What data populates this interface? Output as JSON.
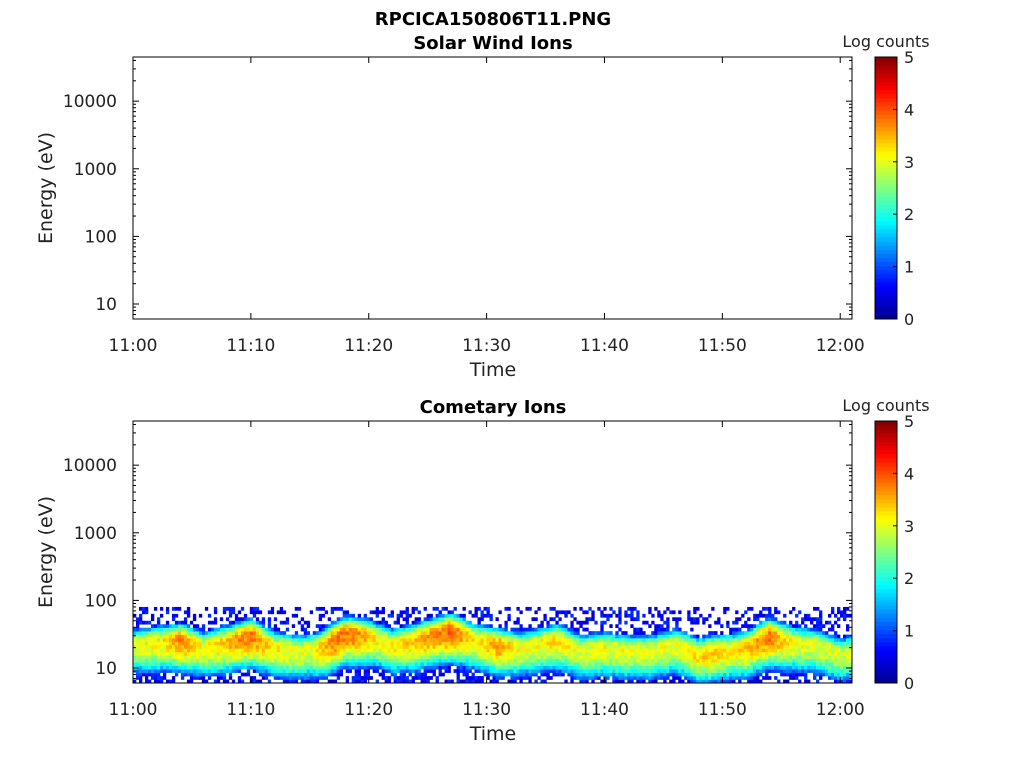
{
  "figure": {
    "title": "RPCICA150806T11.PNG"
  },
  "colorbar": {
    "label": "Log counts",
    "ticks": [
      "0",
      "1",
      "2",
      "3",
      "4",
      "5"
    ]
  },
  "colormap": [
    "#00008f",
    "#0000ff",
    "#0080ff",
    "#00ffff",
    "#80ff80",
    "#ffff00",
    "#ff8000",
    "#ff0000",
    "#800000"
  ],
  "chart_data": [
    {
      "type": "heatmap",
      "title": "Solar Wind Ions",
      "xlabel": "Time",
      "ylabel": "Energy (eV)",
      "x_ticks": [
        "11:00",
        "11:10",
        "11:20",
        "11:30",
        "11:40",
        "11:50",
        "12:00"
      ],
      "xlim_minutes": [
        0,
        61
      ],
      "y_scale": "log",
      "y_ticks": [
        "10",
        "100",
        "1000",
        "10000"
      ],
      "ylim": [
        6,
        45000
      ],
      "zlim": [
        0,
        5
      ],
      "z_label": "Log counts",
      "data": []
    },
    {
      "type": "heatmap",
      "title": "Cometary Ions",
      "xlabel": "Time",
      "ylabel": "Energy (eV)",
      "x_ticks": [
        "11:00",
        "11:10",
        "11:20",
        "11:30",
        "11:40",
        "11:50",
        "12:00"
      ],
      "xlim_minutes": [
        0,
        61
      ],
      "y_scale": "log",
      "y_ticks": [
        "10",
        "100",
        "1000",
        "10000"
      ],
      "ylim": [
        6,
        45000
      ],
      "zlim": [
        0,
        5
      ],
      "z_label": "Log counts",
      "band": {
        "upper_edge_eV": 80,
        "lower_edge_eV": 6,
        "core_energy_eV": [
          [
            0,
            22
          ],
          [
            2,
            24
          ],
          [
            4,
            26
          ],
          [
            6,
            20
          ],
          [
            8,
            24
          ],
          [
            10,
            30
          ],
          [
            12,
            20
          ],
          [
            14,
            18
          ],
          [
            16,
            20
          ],
          [
            18,
            32
          ],
          [
            20,
            30
          ],
          [
            22,
            22
          ],
          [
            24,
            26
          ],
          [
            27,
            36
          ],
          [
            29,
            26
          ],
          [
            31,
            22
          ],
          [
            33,
            20
          ],
          [
            36,
            26
          ],
          [
            38,
            18
          ],
          [
            40,
            20
          ],
          [
            42,
            18
          ],
          [
            44,
            18
          ],
          [
            46,
            22
          ],
          [
            48,
            16
          ],
          [
            50,
            18
          ],
          [
            52,
            20
          ],
          [
            54,
            30
          ],
          [
            56,
            24
          ],
          [
            58,
            22
          ],
          [
            60,
            16
          ],
          [
            61,
            18
          ]
        ],
        "peak_log_counts": [
          [
            0,
            3.0
          ],
          [
            3,
            3.3
          ],
          [
            4,
            3.7
          ],
          [
            6,
            3.1
          ],
          [
            10,
            3.8
          ],
          [
            12,
            3.2
          ],
          [
            15,
            3.0
          ],
          [
            17,
            3.8
          ],
          [
            19,
            3.7
          ],
          [
            21,
            3.1
          ],
          [
            23,
            3.3
          ],
          [
            27,
            3.9
          ],
          [
            29,
            3.2
          ],
          [
            31,
            3.6
          ],
          [
            33,
            3.0
          ],
          [
            36,
            3.3
          ],
          [
            38,
            3.0
          ],
          [
            40,
            3.1
          ],
          [
            43,
            3.0
          ],
          [
            46,
            3.1
          ],
          [
            49,
            3.4
          ],
          [
            51,
            3.2
          ],
          [
            54,
            3.8
          ],
          [
            56,
            3.1
          ],
          [
            58,
            3.0
          ],
          [
            60,
            2.9
          ],
          [
            61,
            3.0
          ]
        ]
      }
    }
  ]
}
